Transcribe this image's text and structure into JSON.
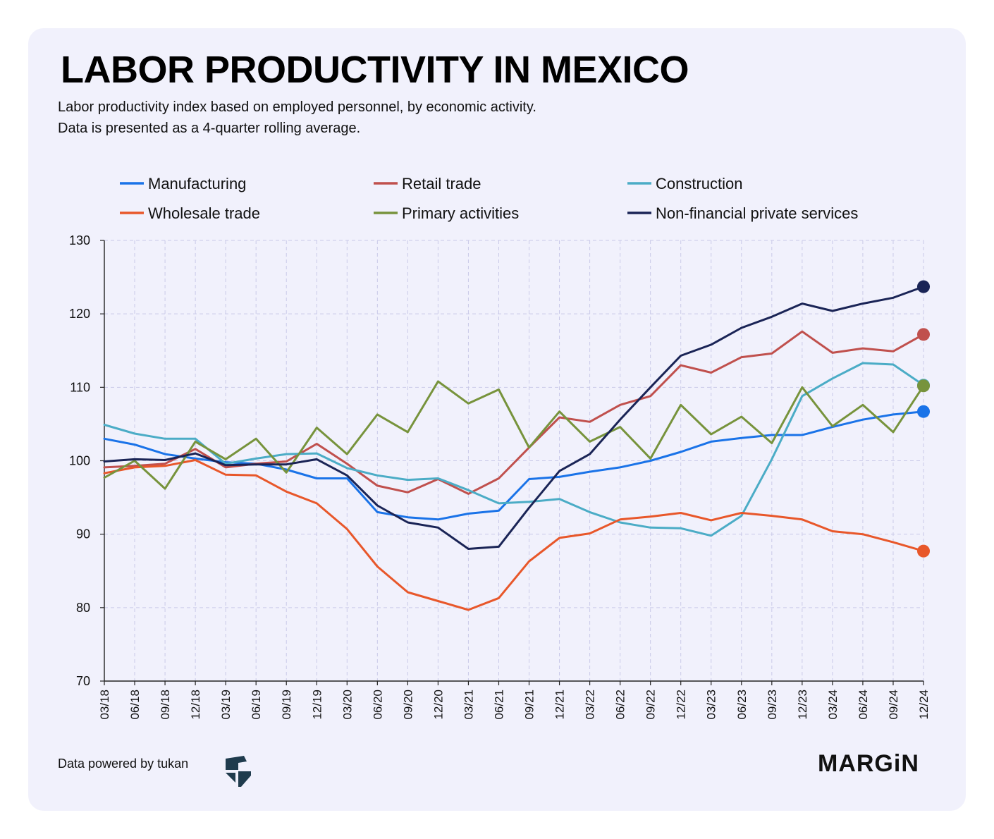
{
  "header": {
    "title": "LABOR PRODUCTIVITY IN MEXICO",
    "subtitle_line1": "Labor productivity index based on employed personnel, by economic activity.",
    "subtitle_line2": "Data is presented as a 4-quarter rolling average."
  },
  "footer": {
    "source": "Data powered by tukan",
    "brand": "MARGiN",
    "tukan_logo_icon": "tukan-logo-icon"
  },
  "chart_data": {
    "type": "line",
    "title": "LABOR PRODUCTIVITY IN MEXICO",
    "xlabel": "",
    "ylabel": "",
    "ylim": [
      70,
      130
    ],
    "yticks": [
      70,
      80,
      90,
      100,
      110,
      120,
      130
    ],
    "grid": true,
    "legend_position": "top",
    "categories": [
      "03/18",
      "06/18",
      "09/18",
      "12/18",
      "03/19",
      "06/19",
      "09/19",
      "12/19",
      "03/20",
      "06/20",
      "09/20",
      "12/20",
      "03/21",
      "06/21",
      "09/21",
      "12/21",
      "03/22",
      "06/22",
      "09/22",
      "12/22",
      "03/23",
      "06/23",
      "09/23",
      "12/23",
      "03/24",
      "06/24",
      "09/24",
      "12/24"
    ],
    "series": [
      {
        "name": "Manufacturing",
        "color": "#1a73e8",
        "values": [
          103.0,
          102.2,
          100.9,
          100.3,
          99.8,
          99.6,
          98.8,
          97.6,
          97.6,
          93.0,
          92.3,
          92.0,
          92.8,
          93.2,
          97.5,
          97.8,
          98.5,
          99.1,
          100.0,
          101.2,
          102.6,
          103.1,
          103.5,
          103.5,
          104.6,
          105.6,
          106.3,
          106.7
        ]
      },
      {
        "name": "Retail trade",
        "color": "#c0504d",
        "values": [
          99.1,
          99.3,
          99.6,
          101.6,
          99.1,
          99.6,
          99.9,
          102.3,
          99.6,
          96.6,
          95.7,
          97.5,
          95.5,
          97.6,
          101.8,
          105.9,
          105.3,
          107.6,
          108.8,
          113.0,
          112.0,
          114.1,
          114.6,
          117.6,
          114.7,
          115.3,
          114.9,
          117.2
        ]
      },
      {
        "name": "Construction",
        "color": "#4bacc6",
        "values": [
          104.9,
          103.7,
          103.0,
          103.0,
          99.6,
          100.3,
          100.9,
          101.0,
          99.0,
          98.0,
          97.4,
          97.6,
          96.0,
          94.2,
          94.4,
          94.8,
          93.0,
          91.6,
          90.9,
          90.8,
          89.8,
          92.5,
          100.2,
          108.8,
          111.2,
          113.3,
          113.1,
          110.3
        ]
      },
      {
        "name": "Wholesale trade",
        "color": "#e8572a",
        "values": [
          98.3,
          99.1,
          99.3,
          100.1,
          98.1,
          98.0,
          95.8,
          94.2,
          90.7,
          85.6,
          82.1,
          80.9,
          79.7,
          81.3,
          86.3,
          89.5,
          90.1,
          92.0,
          92.4,
          92.9,
          91.9,
          92.9,
          92.5,
          92.0,
          90.4,
          90.0,
          88.9,
          87.7
        ]
      },
      {
        "name": "Primary activities",
        "color": "#77933c",
        "values": [
          97.7,
          100.0,
          96.2,
          102.6,
          100.2,
          103.0,
          98.4,
          104.5,
          100.9,
          106.3,
          103.9,
          110.8,
          107.8,
          109.7,
          101.8,
          106.7,
          102.6,
          104.6,
          100.3,
          107.6,
          103.6,
          106.0,
          102.4,
          110.0,
          104.7,
          107.6,
          103.9,
          110.2
        ]
      },
      {
        "name": "Non-financial private services",
        "color": "#1a2456",
        "values": [
          99.9,
          100.2,
          100.1,
          101.0,
          99.4,
          99.5,
          99.5,
          100.2,
          98.0,
          93.9,
          91.6,
          90.9,
          88.0,
          88.3,
          93.6,
          98.6,
          100.9,
          105.6,
          110.0,
          114.3,
          115.8,
          118.1,
          119.6,
          121.4,
          120.4,
          121.4,
          122.2,
          123.7
        ]
      }
    ]
  }
}
